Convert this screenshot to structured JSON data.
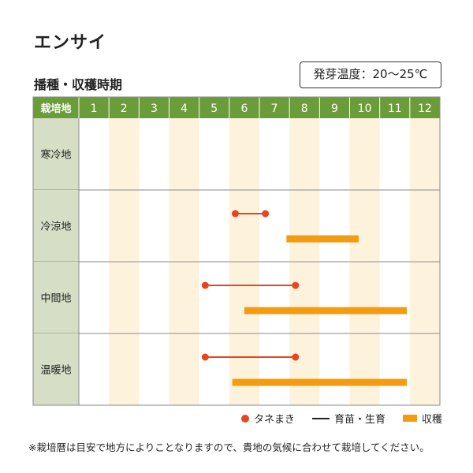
{
  "header": {
    "title": "エンサイ",
    "subtitle": "播種・収穫時期",
    "temperature": "発芽温度：20〜25℃"
  },
  "legend": {
    "sowing": "タネまき",
    "growing": "育苗・生育",
    "harvest": "収穫"
  },
  "footnote": "※栽培暦は目安で地方によりことなりますので、貴地の気候に合わせて栽培してください。",
  "colors": {
    "header_green": "#6a9d3a",
    "region_cell": "#d6dfc6",
    "even_month_band": "#fdf2dc",
    "sowing_color": "#e8451f",
    "harvest_color": "#f39c12"
  },
  "chart_data": {
    "type": "table",
    "corner_label": "栽培地",
    "months": [
      "1",
      "2",
      "3",
      "4",
      "5",
      "6",
      "7",
      "8",
      "9",
      "10",
      "11",
      "12"
    ],
    "regions": [
      {
        "name": "寒冷地",
        "sowing": null,
        "harvest": null
      },
      {
        "name": "冷涼地",
        "sowing": [
          6.2,
          7.2
        ],
        "harvest": [
          7.9,
          10.3
        ]
      },
      {
        "name": "中間地",
        "sowing": [
          5.2,
          8.2
        ],
        "harvest": [
          6.5,
          11.9
        ]
      },
      {
        "name": "温暖地",
        "sowing": [
          5.2,
          8.2
        ],
        "harvest": [
          6.1,
          11.9
        ]
      }
    ]
  }
}
